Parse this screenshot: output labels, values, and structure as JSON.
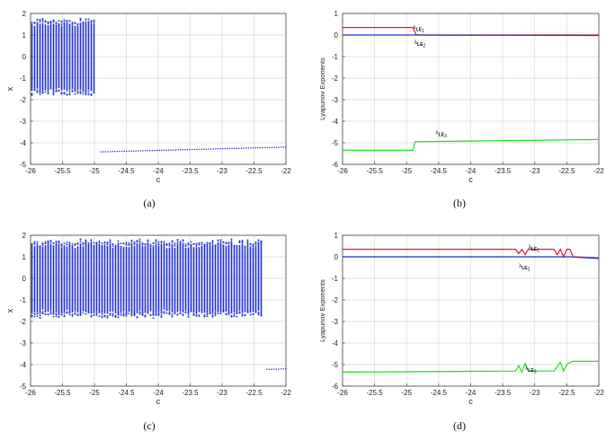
{
  "colors": {
    "scatter": "#1f2fd6",
    "le1": "#e31a1c",
    "le2": "#1f2fd6",
    "le3": "#22dd22",
    "grid": "#d9d9d9",
    "axes": "#444444"
  },
  "chart_data": [
    {
      "id": "a",
      "type": "scatter",
      "caption": "(a)",
      "xlabel": "c",
      "ylabel": "x",
      "xlim": [
        -26,
        -22
      ],
      "ylim": [
        -5,
        2
      ],
      "xticks": [
        -26,
        -25.5,
        -25,
        -24.5,
        -24,
        -23.5,
        -23,
        -22.5,
        -22
      ],
      "yticks": [
        -5,
        -4,
        -3,
        -2,
        -1,
        0,
        1,
        2
      ],
      "chaotic_band": {
        "c_from": -26,
        "c_to": -25.0,
        "x_min": -1.65,
        "x_max": 1.6
      },
      "fixed_point_line": {
        "c": [
          -24.9,
          -22
        ],
        "x": [
          -4.42,
          -4.2
        ]
      }
    },
    {
      "id": "b",
      "type": "line",
      "caption": "(b)",
      "xlabel": "c",
      "ylabel": "Lyapunov Exponents",
      "xlim": [
        -26,
        -22
      ],
      "ylim": [
        -6,
        1
      ],
      "xticks": [
        -26,
        -25.5,
        -25,
        -24.5,
        -24,
        -23.5,
        -23,
        -22.5,
        -22
      ],
      "yticks": [
        -6,
        -5,
        -4,
        -3,
        -2,
        -1,
        0,
        1
      ],
      "series": [
        {
          "name": "LE1",
          "label": "λ",
          "sub": "LE",
          "idx": "1",
          "x": [
            -26,
            -24.9,
            -24.85,
            -22
          ],
          "y": [
            0.35,
            0.35,
            0.0,
            0.0
          ]
        },
        {
          "name": "LE2",
          "label": "λ",
          "sub": "LE",
          "idx": "2",
          "x": [
            -26,
            -24.85,
            -22
          ],
          "y": [
            0.0,
            0.0,
            -0.02
          ]
        },
        {
          "name": "LE3",
          "label": "λ",
          "sub": "LE",
          "idx": "3",
          "x": [
            -26,
            -24.9,
            -24.87,
            -22
          ],
          "y": [
            -5.35,
            -5.35,
            -4.95,
            -4.85
          ]
        }
      ],
      "annotations": [
        {
          "series": "LE1",
          "at": [
            -24.9,
            0.28
          ]
        },
        {
          "series": "LE2",
          "at": [
            -24.88,
            -0.42
          ]
        },
        {
          "series": "LE3",
          "at": [
            -24.55,
            -4.6
          ]
        }
      ]
    },
    {
      "id": "c",
      "type": "scatter",
      "caption": "(c)",
      "xlabel": "c",
      "ylabel": "x",
      "xlim": [
        -26,
        -22
      ],
      "ylim": [
        -5,
        2
      ],
      "xticks": [
        -26,
        -25.5,
        -25,
        -24.5,
        -24,
        -23.5,
        -23,
        -22.5,
        -22
      ],
      "yticks": [
        -5,
        -4,
        -3,
        -2,
        -1,
        0,
        1,
        2
      ],
      "chaotic_band": {
        "c_from": -26,
        "c_to": -22.35,
        "x_min": -1.65,
        "x_max": 1.65
      },
      "fixed_point_line": {
        "c": [
          -22.3,
          -22
        ],
        "x": [
          -4.22,
          -4.2
        ]
      }
    },
    {
      "id": "d",
      "type": "line",
      "caption": "(d)",
      "xlabel": "c",
      "ylabel": "Lyapunov Exponents",
      "xlim": [
        -26,
        -22
      ],
      "ylim": [
        -6,
        1
      ],
      "xticks": [
        -26,
        -25.5,
        -25,
        -24.5,
        -24,
        -23.5,
        -23,
        -22.5,
        -22
      ],
      "yticks": [
        -6,
        -5,
        -4,
        -3,
        -2,
        -1,
        0,
        1
      ],
      "series": [
        {
          "name": "LE1",
          "label": "λ",
          "sub": "LE",
          "idx": "1",
          "x": [
            -26,
            -23.3,
            -23.25,
            -23.2,
            -23.15,
            -23.1,
            -22.7,
            -22.65,
            -22.6,
            -22.55,
            -22.5,
            -22.45,
            -22.4,
            -22.0
          ],
          "y": [
            0.35,
            0.35,
            0.15,
            0.35,
            0.1,
            0.35,
            0.35,
            0.1,
            0.35,
            0.0,
            0.35,
            0.35,
            0.0,
            -0.05
          ]
        },
        {
          "name": "LE2",
          "label": "λ",
          "sub": "LE",
          "idx": "2",
          "x": [
            -26,
            -22.45,
            -22
          ],
          "y": [
            0.0,
            0.0,
            -0.08
          ]
        },
        {
          "name": "LE3",
          "label": "λ",
          "sub": "LE",
          "idx": "3",
          "x": [
            -26,
            -23.3,
            -23.25,
            -23.2,
            -23.15,
            -23.1,
            -22.7,
            -22.65,
            -22.6,
            -22.55,
            -22.5,
            -22.45,
            -22.4,
            -22.0
          ],
          "y": [
            -5.35,
            -5.3,
            -5.05,
            -5.35,
            -4.95,
            -5.3,
            -5.3,
            -5.1,
            -4.9,
            -5.3,
            -5.0,
            -4.9,
            -4.85,
            -4.85
          ]
        }
      ],
      "annotations": [
        {
          "series": "LE1",
          "at": [
            -23.1,
            0.38
          ]
        },
        {
          "series": "LE2",
          "at": [
            -23.25,
            -0.5
          ]
        },
        {
          "series": "LE3",
          "at": [
            -23.15,
            -5.25
          ]
        }
      ]
    }
  ]
}
